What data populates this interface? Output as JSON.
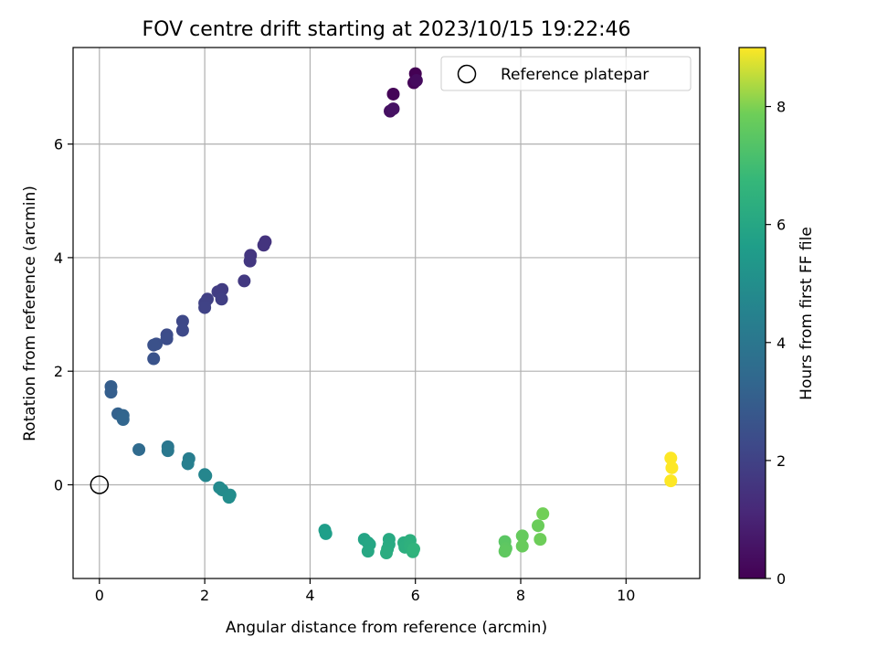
{
  "chart_data": {
    "type": "scatter",
    "title": "FOV centre drift starting at 2023/10/15 19:22:46",
    "xlabel": "Angular distance from reference (arcmin)",
    "ylabel": "Rotation from reference (arcmin)",
    "xlim": [
      -0.5,
      11.4
    ],
    "ylim": [
      -1.65,
      7.7
    ],
    "xticks": [
      0,
      2,
      4,
      6,
      8,
      10
    ],
    "yticks": [
      0,
      2,
      4,
      6
    ],
    "grid": true,
    "legend": {
      "label": "Reference platepar",
      "placement": "upper right"
    },
    "colorbar": {
      "label": "Hours from first FF file",
      "range": [
        0,
        9
      ],
      "ticks": [
        0,
        2,
        4,
        6,
        8
      ],
      "colormap": "viridis"
    },
    "reference_point": {
      "x": 0,
      "y": 0
    },
    "points": [
      {
        "x": 5.58,
        "y": 6.88,
        "c": 0.1
      },
      {
        "x": 6.0,
        "y": 7.24,
        "c": 0.0
      },
      {
        "x": 5.97,
        "y": 7.08,
        "c": 0.15
      },
      {
        "x": 6.02,
        "y": 7.12,
        "c": 0.3
      },
      {
        "x": 5.52,
        "y": 6.58,
        "c": 0.4
      },
      {
        "x": 5.58,
        "y": 6.62,
        "c": 0.5
      },
      {
        "x": 3.15,
        "y": 4.28,
        "c": 1.5
      },
      {
        "x": 3.12,
        "y": 4.22,
        "c": 1.55
      },
      {
        "x": 2.87,
        "y": 4.04,
        "c": 1.6
      },
      {
        "x": 2.86,
        "y": 3.94,
        "c": 1.65
      },
      {
        "x": 2.75,
        "y": 3.59,
        "c": 1.7
      },
      {
        "x": 2.33,
        "y": 3.44,
        "c": 1.8
      },
      {
        "x": 2.25,
        "y": 3.4,
        "c": 1.85
      },
      {
        "x": 2.32,
        "y": 3.27,
        "c": 1.9
      },
      {
        "x": 2.05,
        "y": 3.27,
        "c": 1.95
      },
      {
        "x": 2.0,
        "y": 3.2,
        "c": 2.0
      },
      {
        "x": 2.0,
        "y": 3.12,
        "c": 2.05
      },
      {
        "x": 1.58,
        "y": 2.88,
        "c": 2.2
      },
      {
        "x": 1.58,
        "y": 2.72,
        "c": 2.25
      },
      {
        "x": 1.28,
        "y": 2.64,
        "c": 2.35
      },
      {
        "x": 1.28,
        "y": 2.57,
        "c": 2.4
      },
      {
        "x": 1.08,
        "y": 2.48,
        "c": 2.5
      },
      {
        "x": 1.03,
        "y": 2.46,
        "c": 2.55
      },
      {
        "x": 1.03,
        "y": 2.22,
        "c": 2.6
      },
      {
        "x": 0.22,
        "y": 1.73,
        "c": 3.0
      },
      {
        "x": 0.22,
        "y": 1.63,
        "c": 3.05
      },
      {
        "x": 0.35,
        "y": 1.25,
        "c": 3.15
      },
      {
        "x": 0.43,
        "y": 1.2,
        "c": 3.2
      },
      {
        "x": 0.45,
        "y": 1.22,
        "c": 3.25
      },
      {
        "x": 0.45,
        "y": 1.15,
        "c": 3.3
      },
      {
        "x": 0.75,
        "y": 0.62,
        "c": 3.5
      },
      {
        "x": 1.3,
        "y": 0.67,
        "c": 4.0
      },
      {
        "x": 1.3,
        "y": 0.6,
        "c": 4.05
      },
      {
        "x": 1.7,
        "y": 0.46,
        "c": 4.3
      },
      {
        "x": 1.68,
        "y": 0.37,
        "c": 4.35
      },
      {
        "x": 2.0,
        "y": 0.18,
        "c": 4.6
      },
      {
        "x": 2.02,
        "y": 0.16,
        "c": 4.65
      },
      {
        "x": 2.28,
        "y": -0.05,
        "c": 4.8
      },
      {
        "x": 2.33,
        "y": -0.09,
        "c": 4.85
      },
      {
        "x": 2.48,
        "y": -0.18,
        "c": 4.9
      },
      {
        "x": 2.46,
        "y": -0.22,
        "c": 4.95
      },
      {
        "x": 4.28,
        "y": -0.8,
        "c": 5.6
      },
      {
        "x": 4.3,
        "y": -0.86,
        "c": 5.65
      },
      {
        "x": 5.03,
        "y": -0.96,
        "c": 5.9
      },
      {
        "x": 5.1,
        "y": -1.02,
        "c": 5.95
      },
      {
        "x": 5.13,
        "y": -1.05,
        "c": 6.0
      },
      {
        "x": 5.1,
        "y": -1.17,
        "c": 6.05
      },
      {
        "x": 5.5,
        "y": -0.96,
        "c": 6.1
      },
      {
        "x": 5.5,
        "y": -1.05,
        "c": 6.15
      },
      {
        "x": 5.47,
        "y": -1.13,
        "c": 6.2
      },
      {
        "x": 5.45,
        "y": -1.2,
        "c": 6.25
      },
      {
        "x": 5.78,
        "y": -1.02,
        "c": 6.3
      },
      {
        "x": 5.8,
        "y": -1.1,
        "c": 6.35
      },
      {
        "x": 5.9,
        "y": -0.98,
        "c": 6.4
      },
      {
        "x": 5.9,
        "y": -1.08,
        "c": 6.45
      },
      {
        "x": 5.95,
        "y": -1.18,
        "c": 6.5
      },
      {
        "x": 5.97,
        "y": -1.13,
        "c": 6.55
      },
      {
        "x": 7.7,
        "y": -1.0,
        "c": 7.5
      },
      {
        "x": 7.72,
        "y": -1.12,
        "c": 7.55
      },
      {
        "x": 7.7,
        "y": -1.17,
        "c": 7.6
      },
      {
        "x": 8.03,
        "y": -0.9,
        "c": 7.7
      },
      {
        "x": 8.03,
        "y": -1.08,
        "c": 7.75
      },
      {
        "x": 8.33,
        "y": -0.72,
        "c": 7.8
      },
      {
        "x": 8.37,
        "y": -0.96,
        "c": 7.85
      },
      {
        "x": 8.42,
        "y": -0.51,
        "c": 7.9
      },
      {
        "x": 10.85,
        "y": 0.47,
        "c": 9.0
      },
      {
        "x": 10.87,
        "y": 0.3,
        "c": 9.0
      },
      {
        "x": 10.85,
        "y": 0.07,
        "c": 9.0
      }
    ]
  },
  "colors": {
    "grid": "#b0b0b0",
    "axes": "#000000"
  }
}
